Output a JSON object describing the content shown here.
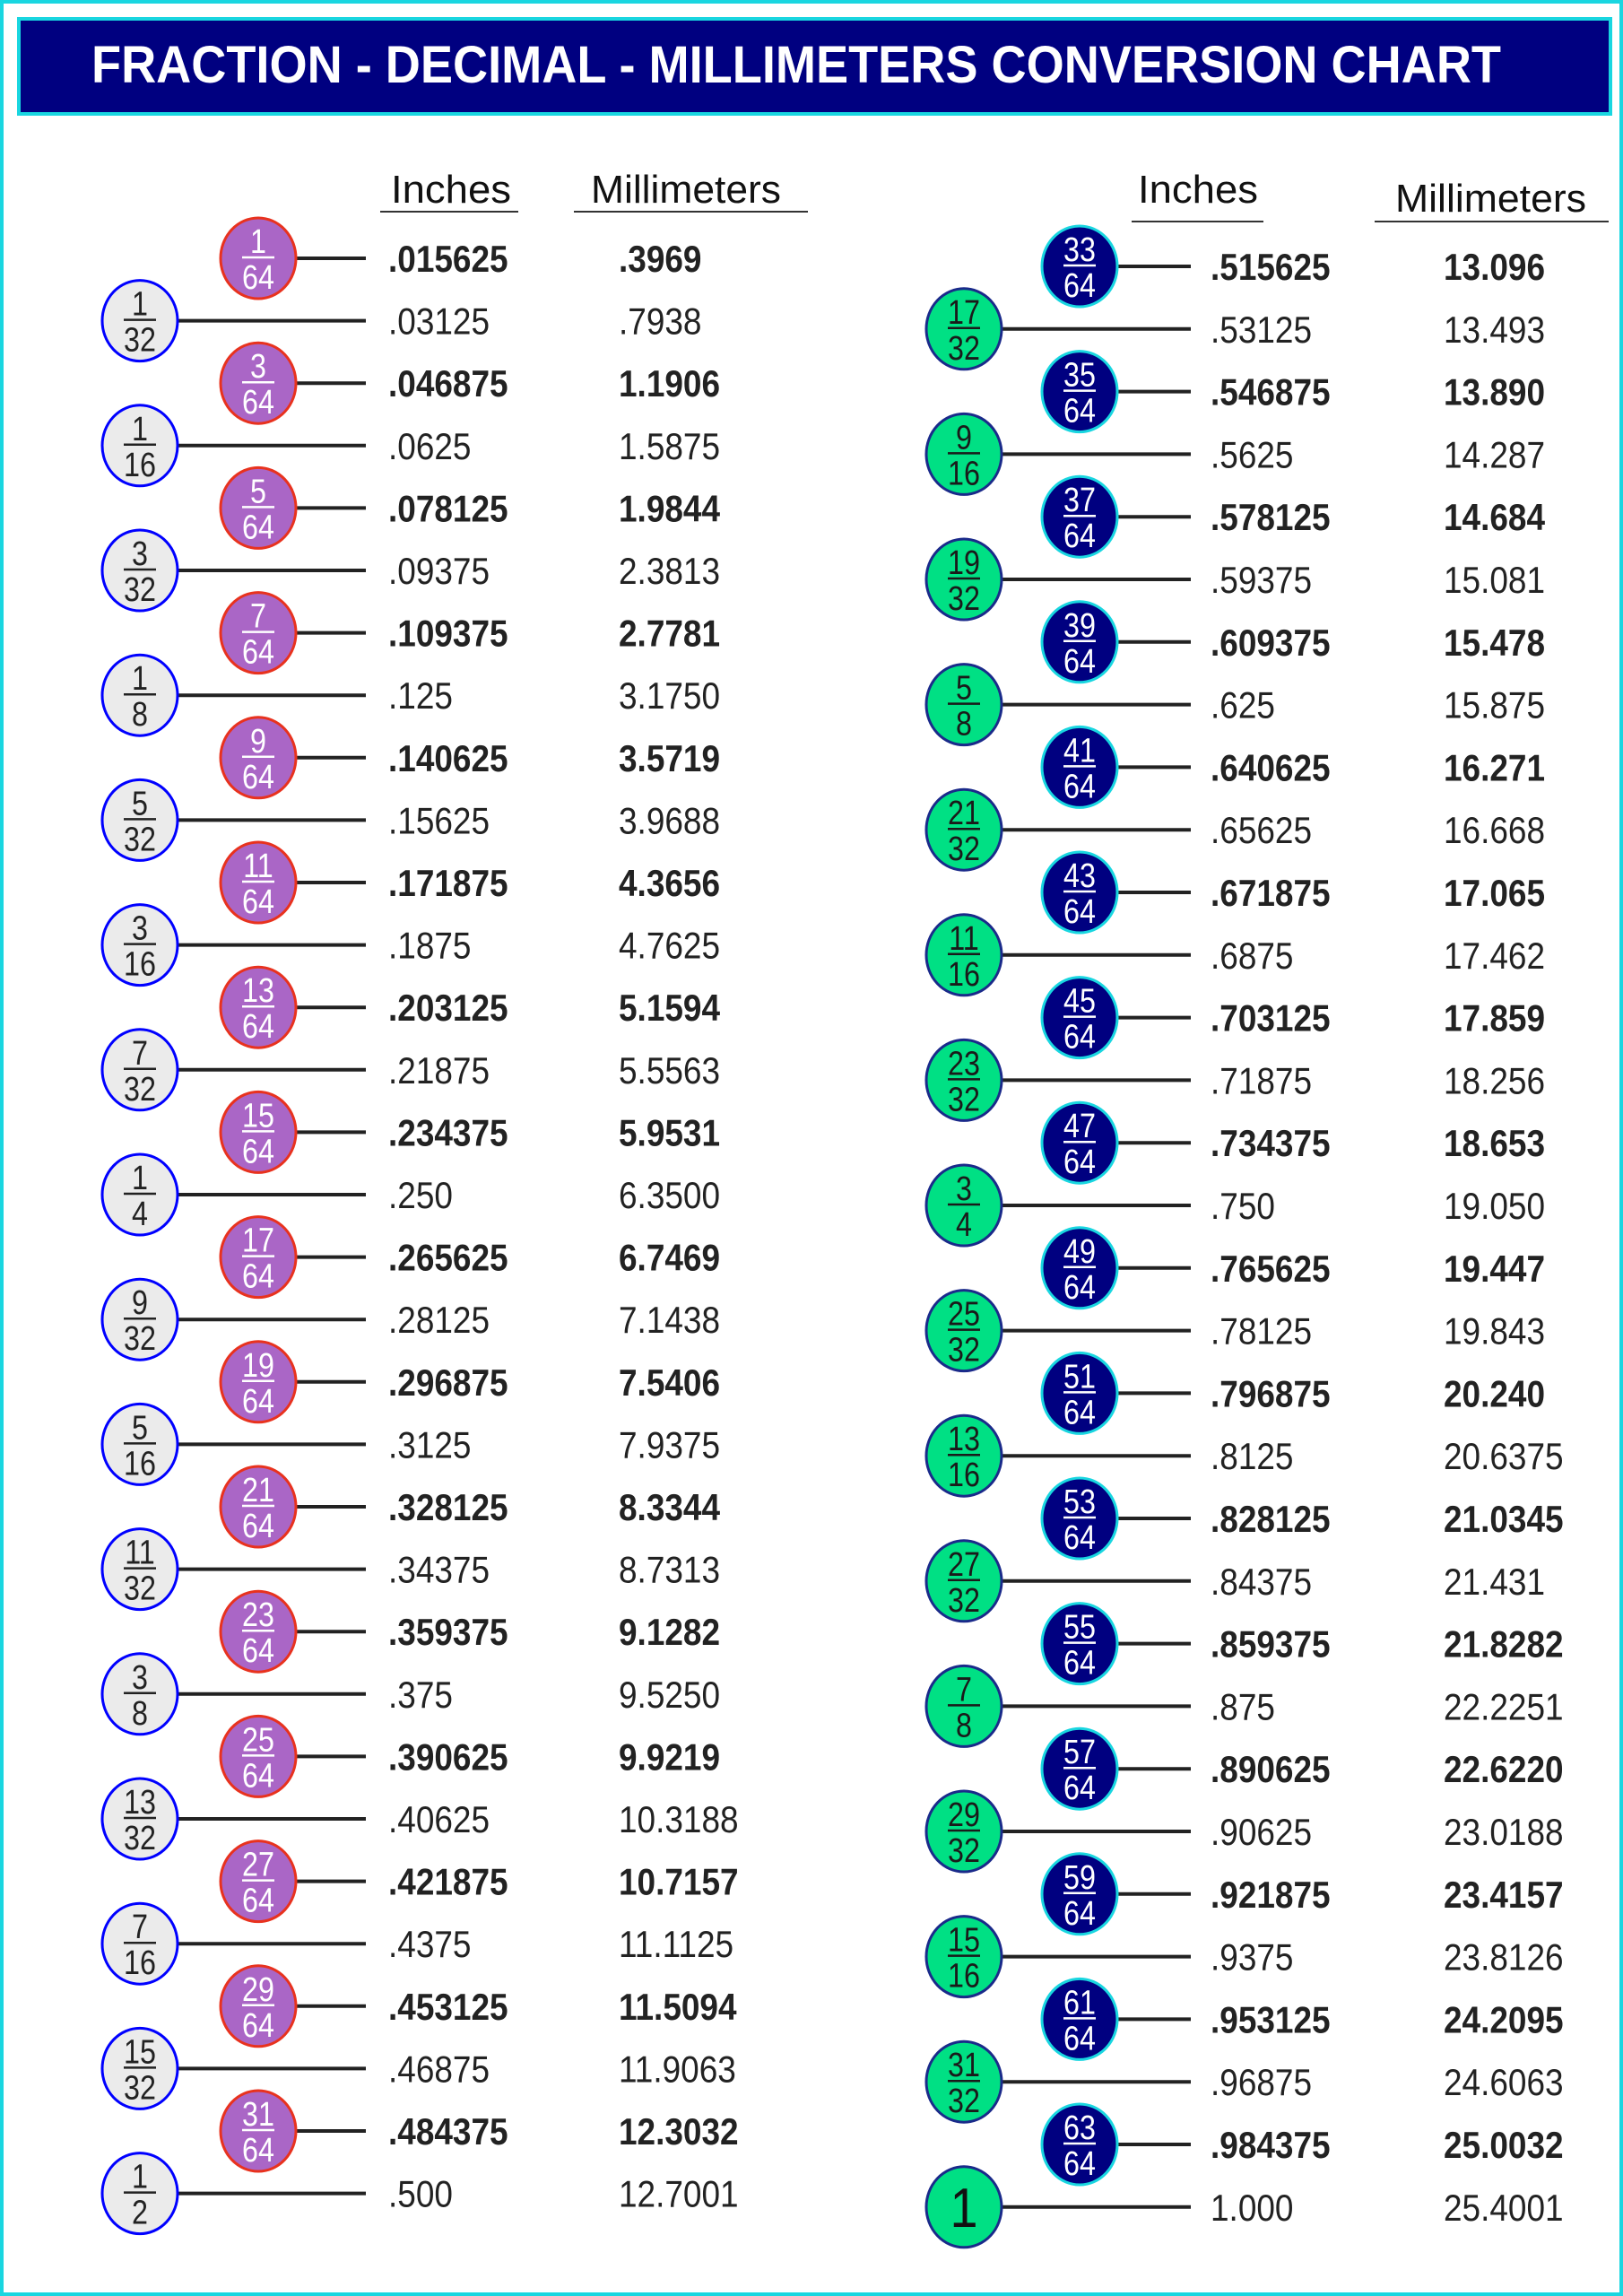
{
  "title": "FRACTION - DECIMAL - MILLIMETERS CONVERSION CHART",
  "colors": {
    "title_bg": "#000080",
    "border": "#19d6e0",
    "left_64_fill": "#aa66c6",
    "left_64_stroke": "#e8321e",
    "left_other_fill": "#ebebeb",
    "left_other_stroke": "#0000ff",
    "right_64_fill": "#000080",
    "right_64_stroke": "#19d6e0",
    "right_other_fill": "#00e084",
    "right_other_stroke": "#1a2a8a"
  },
  "columns": [
    {
      "headers": {
        "inches": "Inches",
        "mm": "Millimeters"
      },
      "rows": [
        {
          "fraction": "1/64",
          "inches": ".015625",
          "mm": ".3969"
        },
        {
          "fraction": "1/32",
          "inches": ".03125",
          "mm": ".7938"
        },
        {
          "fraction": "3/64",
          "inches": ".046875",
          "mm": "1.1906"
        },
        {
          "fraction": "1/16",
          "inches": ".0625",
          "mm": "1.5875"
        },
        {
          "fraction": "5/64",
          "inches": ".078125",
          "mm": "1.9844"
        },
        {
          "fraction": "3/32",
          "inches": ".09375",
          "mm": "2.3813"
        },
        {
          "fraction": "7/64",
          "inches": ".109375",
          "mm": "2.7781"
        },
        {
          "fraction": "1/8",
          "inches": ".125",
          "mm": "3.1750"
        },
        {
          "fraction": "9/64",
          "inches": ".140625",
          "mm": "3.5719"
        },
        {
          "fraction": "5/32",
          "inches": ".15625",
          "mm": "3.9688"
        },
        {
          "fraction": "11/64",
          "inches": ".171875",
          "mm": "4.3656"
        },
        {
          "fraction": "3/16",
          "inches": ".1875",
          "mm": "4.7625"
        },
        {
          "fraction": "13/64",
          "inches": ".203125",
          "mm": "5.1594"
        },
        {
          "fraction": "7/32",
          "inches": ".21875",
          "mm": "5.5563"
        },
        {
          "fraction": "15/64",
          "inches": ".234375",
          "mm": "5.9531"
        },
        {
          "fraction": "1/4",
          "inches": ".250",
          "mm": "6.3500"
        },
        {
          "fraction": "17/64",
          "inches": ".265625",
          "mm": "6.7469"
        },
        {
          "fraction": "9/32",
          "inches": ".28125",
          "mm": "7.1438"
        },
        {
          "fraction": "19/64",
          "inches": ".296875",
          "mm": "7.5406"
        },
        {
          "fraction": "5/16",
          "inches": ".3125",
          "mm": "7.9375"
        },
        {
          "fraction": "21/64",
          "inches": ".328125",
          "mm": "8.3344"
        },
        {
          "fraction": "11/32",
          "inches": ".34375",
          "mm": "8.7313"
        },
        {
          "fraction": "23/64",
          "inches": ".359375",
          "mm": "9.1282"
        },
        {
          "fraction": "3/8",
          "inches": ".375",
          "mm": "9.5250"
        },
        {
          "fraction": "25/64",
          "inches": ".390625",
          "mm": "9.9219"
        },
        {
          "fraction": "13/32",
          "inches": ".40625",
          "mm": "10.3188"
        },
        {
          "fraction": "27/64",
          "inches": ".421875",
          "mm": "10.7157"
        },
        {
          "fraction": "7/16",
          "inches": ".4375",
          "mm": "11.1125"
        },
        {
          "fraction": "29/64",
          "inches": ".453125",
          "mm": "11.5094"
        },
        {
          "fraction": "15/32",
          "inches": ".46875",
          "mm": "11.9063"
        },
        {
          "fraction": "31/64",
          "inches": ".484375",
          "mm": "12.3032"
        },
        {
          "fraction": "1/2",
          "inches": ".500",
          "mm": "12.7001"
        }
      ]
    },
    {
      "headers": {
        "inches": "Inches",
        "mm": "Millimeters"
      },
      "rows": [
        {
          "fraction": "33/64",
          "inches": ".515625",
          "mm": "13.096"
        },
        {
          "fraction": "17/32",
          "inches": ".53125",
          "mm": "13.493"
        },
        {
          "fraction": "35/64",
          "inches": ".546875",
          "mm": "13.890"
        },
        {
          "fraction": "9/16",
          "inches": ".5625",
          "mm": "14.287"
        },
        {
          "fraction": "37/64",
          "inches": ".578125",
          "mm": "14.684"
        },
        {
          "fraction": "19/32",
          "inches": ".59375",
          "mm": "15.081"
        },
        {
          "fraction": "39/64",
          "inches": ".609375",
          "mm": "15.478"
        },
        {
          "fraction": "5/8",
          "inches": ".625",
          "mm": "15.875"
        },
        {
          "fraction": "41/64",
          "inches": ".640625",
          "mm": "16.271"
        },
        {
          "fraction": "21/32",
          "inches": ".65625",
          "mm": "16.668"
        },
        {
          "fraction": "43/64",
          "inches": ".671875",
          "mm": "17.065"
        },
        {
          "fraction": "11/16",
          "inches": ".6875",
          "mm": "17.462"
        },
        {
          "fraction": "45/64",
          "inches": ".703125",
          "mm": "17.859"
        },
        {
          "fraction": "23/32",
          "inches": ".71875",
          "mm": "18.256"
        },
        {
          "fraction": "47/64",
          "inches": ".734375",
          "mm": "18.653"
        },
        {
          "fraction": "3/4",
          "inches": ".750",
          "mm": "19.050"
        },
        {
          "fraction": "49/64",
          "inches": ".765625",
          "mm": "19.447"
        },
        {
          "fraction": "25/32",
          "inches": ".78125",
          "mm": "19.843"
        },
        {
          "fraction": "51/64",
          "inches": ".796875",
          "mm": "20.240"
        },
        {
          "fraction": "13/16",
          "inches": ".8125",
          "mm": "20.6375"
        },
        {
          "fraction": "53/64",
          "inches": ".828125",
          "mm": "21.0345"
        },
        {
          "fraction": "27/32",
          "inches": ".84375",
          "mm": "21.431"
        },
        {
          "fraction": "55/64",
          "inches": ".859375",
          "mm": "21.8282"
        },
        {
          "fraction": "7/8",
          "inches": ".875",
          "mm": "22.2251"
        },
        {
          "fraction": "57/64",
          "inches": ".890625",
          "mm": "22.6220"
        },
        {
          "fraction": "29/32",
          "inches": ".90625",
          "mm": "23.0188"
        },
        {
          "fraction": "59/64",
          "inches": ".921875",
          "mm": "23.4157"
        },
        {
          "fraction": "15/16",
          "inches": ".9375",
          "mm": "23.8126"
        },
        {
          "fraction": "61/64",
          "inches": ".953125",
          "mm": "24.2095"
        },
        {
          "fraction": "31/32",
          "inches": ".96875",
          "mm": "24.6063"
        },
        {
          "fraction": "63/64",
          "inches": ".984375",
          "mm": "25.0032"
        },
        {
          "fraction": "1",
          "inches": "1.000",
          "mm": "25.4001"
        }
      ]
    }
  ]
}
